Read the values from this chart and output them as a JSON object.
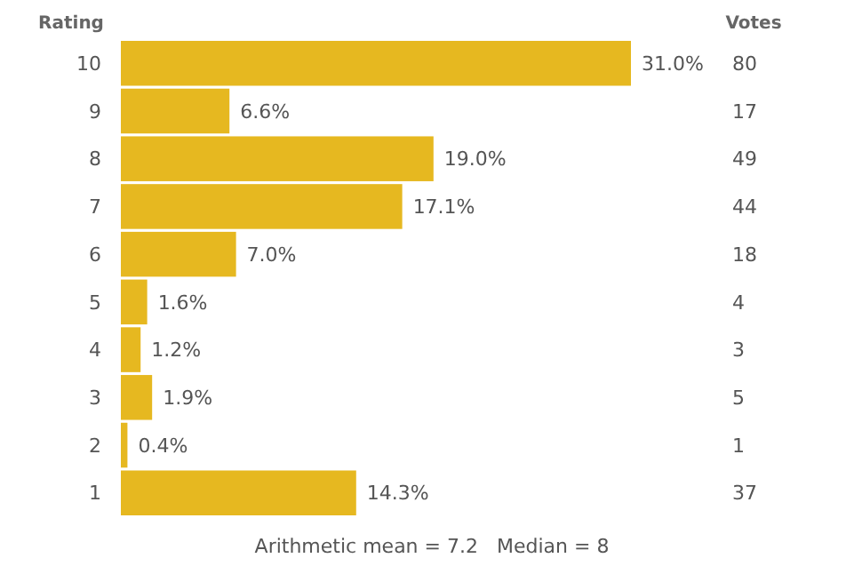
{
  "chart_data": {
    "type": "bar",
    "orientation": "horizontal",
    "ylabel": "Rating",
    "categories": [
      "10",
      "9",
      "8",
      "7",
      "6",
      "5",
      "4",
      "3",
      "2",
      "1"
    ],
    "values": [
      31.0,
      6.6,
      19.0,
      17.1,
      7.0,
      1.6,
      1.2,
      1.9,
      0.4,
      14.3
    ],
    "value_labels": [
      "31.0%",
      "6.6%",
      "19.0%",
      "17.1%",
      "7.0%",
      "1.6%",
      "1.2%",
      "1.9%",
      "0.4%",
      "14.3%"
    ],
    "color": "#e6b820",
    "xlim": [
      0,
      31
    ],
    "tick_labels": "y",
    "annotations": [
      "Votes",
      "80",
      "17",
      "49",
      "44",
      "18",
      "4",
      "3",
      "5",
      "1",
      "37",
      "Arithmetic mean = 7.2   Median = 8"
    ]
  }
}
